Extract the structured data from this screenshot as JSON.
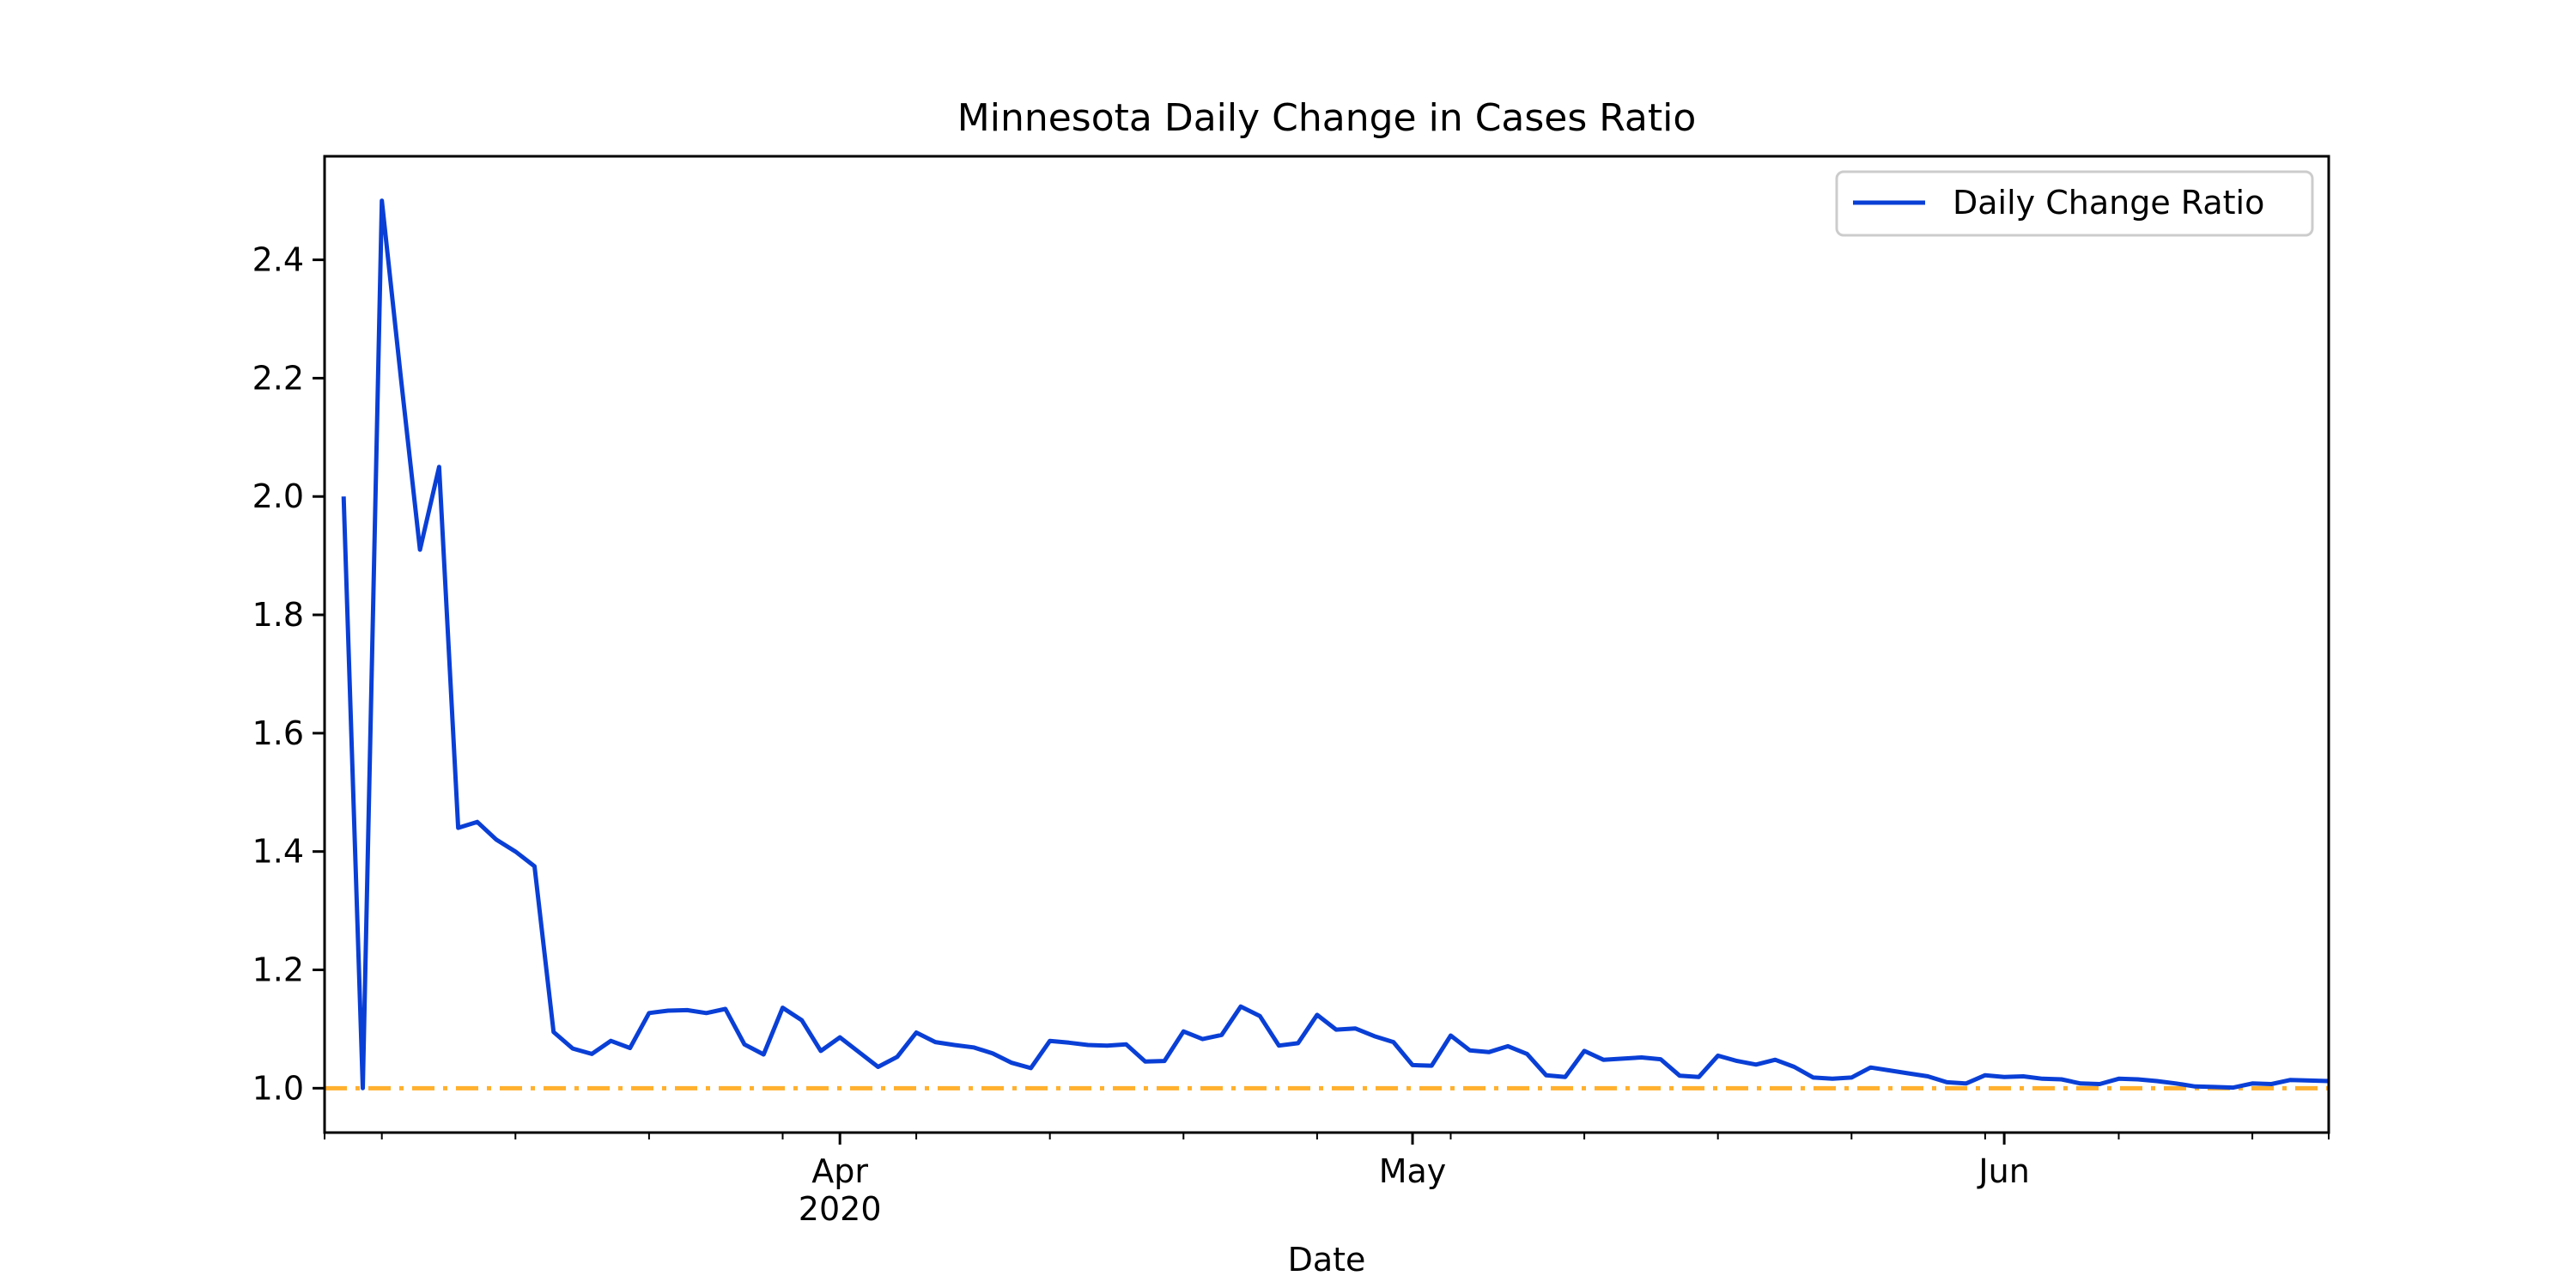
{
  "chart_data": {
    "type": "line",
    "title": "Minnesota Daily Change in Cases Ratio",
    "xlabel": "Date",
    "ylabel": "",
    "xlim": [
      "2020-03-05",
      "2020-06-18"
    ],
    "ylim": [
      0.925,
      2.575
    ],
    "yticks": [
      1.0,
      1.2,
      1.4,
      1.6,
      1.8,
      2.0,
      2.2,
      2.4
    ],
    "ytick_labels": [
      "1.0",
      "1.2",
      "1.4",
      "1.6",
      "1.8",
      "2.0",
      "2.2",
      "2.4"
    ],
    "xticks_major": [
      {
        "date": "2020-04-01",
        "label": "Apr",
        "sublabel": "2020"
      },
      {
        "date": "2020-05-01",
        "label": "May",
        "sublabel": ""
      },
      {
        "date": "2020-06-01",
        "label": "Jun",
        "sublabel": ""
      }
    ],
    "xticks_minor": [
      "2020-03-05",
      "2020-03-08",
      "2020-03-15",
      "2020-03-22",
      "2020-03-29",
      "2020-04-05",
      "2020-04-12",
      "2020-04-19",
      "2020-04-26",
      "2020-05-03",
      "2020-05-10",
      "2020-05-17",
      "2020-05-24",
      "2020-05-31",
      "2020-06-07",
      "2020-06-14",
      "2020-06-18"
    ],
    "grid": false,
    "legend": {
      "placement": "top-right"
    },
    "colors": {
      "series": "#0a3fd6",
      "reference": "#ffb02e",
      "axes": "#000000"
    },
    "reference_line": {
      "y": 1.0,
      "style": "dash-dot"
    },
    "series": [
      {
        "name": "Daily Change Ratio",
        "x": [
          "2020-03-06",
          "2020-03-07",
          "2020-03-08",
          "2020-03-09",
          "2020-03-10",
          "2020-03-11",
          "2020-03-12",
          "2020-03-13",
          "2020-03-14",
          "2020-03-15",
          "2020-03-16",
          "2020-03-17",
          "2020-03-18",
          "2020-03-19",
          "2020-03-20",
          "2020-03-21",
          "2020-03-22",
          "2020-03-23",
          "2020-03-24",
          "2020-03-25",
          "2020-03-26",
          "2020-03-27",
          "2020-03-28",
          "2020-03-29",
          "2020-03-30",
          "2020-03-31",
          "2020-04-01",
          "2020-04-02",
          "2020-04-03",
          "2020-04-04",
          "2020-04-05",
          "2020-04-06",
          "2020-04-07",
          "2020-04-08",
          "2020-04-09",
          "2020-04-10",
          "2020-04-11",
          "2020-04-12",
          "2020-04-13",
          "2020-04-14",
          "2020-04-15",
          "2020-04-16",
          "2020-04-17",
          "2020-04-18",
          "2020-04-19",
          "2020-04-20",
          "2020-04-21",
          "2020-04-22",
          "2020-04-23",
          "2020-04-24",
          "2020-04-25",
          "2020-04-26",
          "2020-04-27",
          "2020-04-28",
          "2020-04-29",
          "2020-04-30",
          "2020-05-01",
          "2020-05-02",
          "2020-05-03",
          "2020-05-04",
          "2020-05-05",
          "2020-05-06",
          "2020-05-07",
          "2020-05-08",
          "2020-05-09",
          "2020-05-10",
          "2020-05-11",
          "2020-05-12",
          "2020-05-13",
          "2020-05-14",
          "2020-05-15",
          "2020-05-16",
          "2020-05-17",
          "2020-05-18",
          "2020-05-19",
          "2020-05-20",
          "2020-05-21",
          "2020-05-22",
          "2020-05-23",
          "2020-05-24",
          "2020-05-25",
          "2020-05-26",
          "2020-05-27",
          "2020-05-28",
          "2020-05-29",
          "2020-05-30",
          "2020-05-31",
          "2020-06-01",
          "2020-06-02",
          "2020-06-03",
          "2020-06-04",
          "2020-06-05",
          "2020-06-06",
          "2020-06-07",
          "2020-06-08",
          "2020-06-09",
          "2020-06-10",
          "2020-06-11",
          "2020-06-12",
          "2020-06-13",
          "2020-06-14",
          "2020-06-15",
          "2020-06-16",
          "2020-06-17",
          "2020-06-18"
        ],
        "values": [
          2.0,
          1.0,
          2.5,
          2.2,
          1.91,
          2.05,
          1.44,
          1.45,
          1.42,
          1.4,
          1.375,
          1.095,
          1.067,
          1.058,
          1.08,
          1.068,
          1.127,
          1.131,
          1.132,
          1.127,
          1.134,
          1.074,
          1.057,
          1.136,
          1.115,
          1.063,
          1.086,
          1.061,
          1.036,
          1.053,
          1.094,
          1.078,
          1.073,
          1.069,
          1.059,
          1.043,
          1.034,
          1.08,
          1.077,
          1.073,
          1.072,
          1.074,
          1.045,
          1.046,
          1.096,
          1.083,
          1.09,
          1.138,
          1.122,
          1.072,
          1.076,
          1.124,
          1.099,
          1.101,
          1.088,
          1.078,
          1.039,
          1.038,
          1.089,
          1.064,
          1.061,
          1.071,
          1.058,
          1.022,
          1.019,
          1.063,
          1.048,
          1.05,
          1.052,
          1.049,
          1.021,
          1.019,
          1.055,
          1.046,
          1.04,
          1.048,
          1.036,
          1.018,
          1.016,
          1.018,
          1.035,
          1.03,
          1.025,
          1.02,
          1.01,
          1.008,
          1.022,
          1.019,
          1.02,
          1.016,
          1.015,
          1.008,
          1.007,
          1.016,
          1.015,
          1.012,
          1.008,
          1.003,
          1.002,
          1.001,
          1.008,
          1.007,
          1.014,
          1.013,
          1.012
        ]
      }
    ]
  }
}
